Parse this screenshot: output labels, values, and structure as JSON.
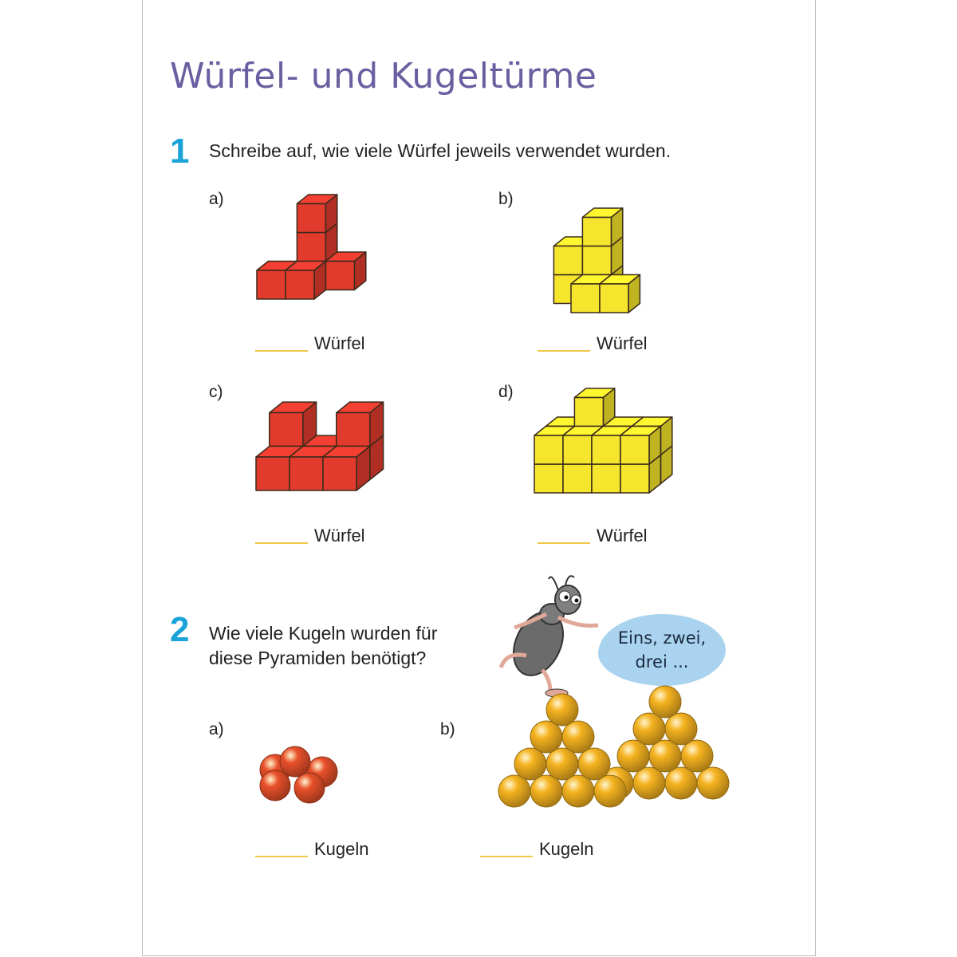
{
  "title": "Würfel- und Kugeltürme",
  "task1": {
    "number": "1",
    "text": "Schreibe auf, wie viele Würfel jeweils verwendet wurden.",
    "items": [
      {
        "label": "a)",
        "unit": "Würfel",
        "color": "#e23b2e"
      },
      {
        "label": "b)",
        "unit": "Würfel",
        "color": "#f5e52c"
      },
      {
        "label": "c)",
        "unit": "Würfel",
        "color": "#e23b2e"
      },
      {
        "label": "d)",
        "unit": "Würfel",
        "color": "#f5e52c"
      }
    ]
  },
  "task2": {
    "number": "2",
    "text_line1": "Wie viele Kugeln wurden für",
    "text_line2": "diese Pyramiden benötigt?",
    "items": [
      {
        "label": "a)",
        "unit": "Kugeln",
        "color": "#e8502a"
      },
      {
        "label": "b)",
        "unit": "Kugeln",
        "color": "#f5b320"
      }
    ]
  },
  "speech": {
    "line1": "Eins, zwei,",
    "line2": "drei ..."
  },
  "accent": {
    "title": "#6a5fa0",
    "number": "#1aa3d9",
    "answer_line": "#f0c84a",
    "bubble": "#a9d3ee"
  }
}
